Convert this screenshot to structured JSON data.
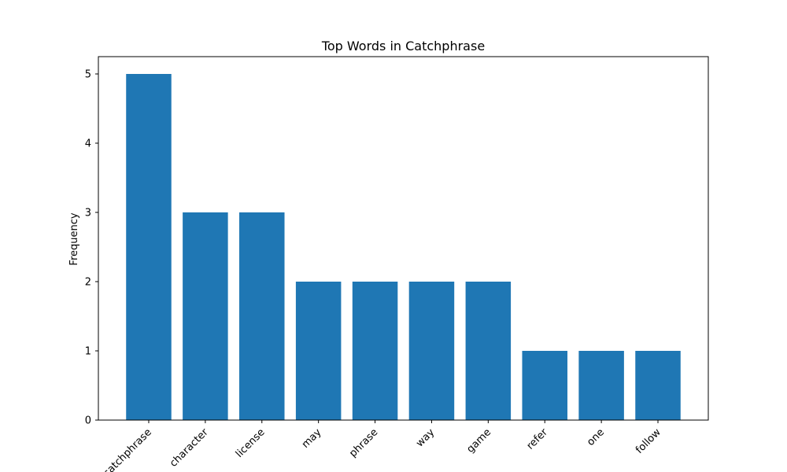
{
  "chart_data": {
    "type": "bar",
    "title": "Top Words in Catchphrase",
    "xlabel": "",
    "ylabel": "Frequency",
    "categories": [
      "catchphrase",
      "character",
      "license",
      "may",
      "phrase",
      "way",
      "game",
      "refer",
      "one",
      "follow"
    ],
    "values": [
      5,
      3,
      3,
      2,
      2,
      2,
      2,
      1,
      1,
      1
    ],
    "ylim": [
      0,
      5.25
    ],
    "yticks": [
      "0",
      "1",
      "2",
      "3",
      "4",
      "5"
    ],
    "grid": false,
    "legend": "none",
    "bar_color": "#1f77b4"
  }
}
